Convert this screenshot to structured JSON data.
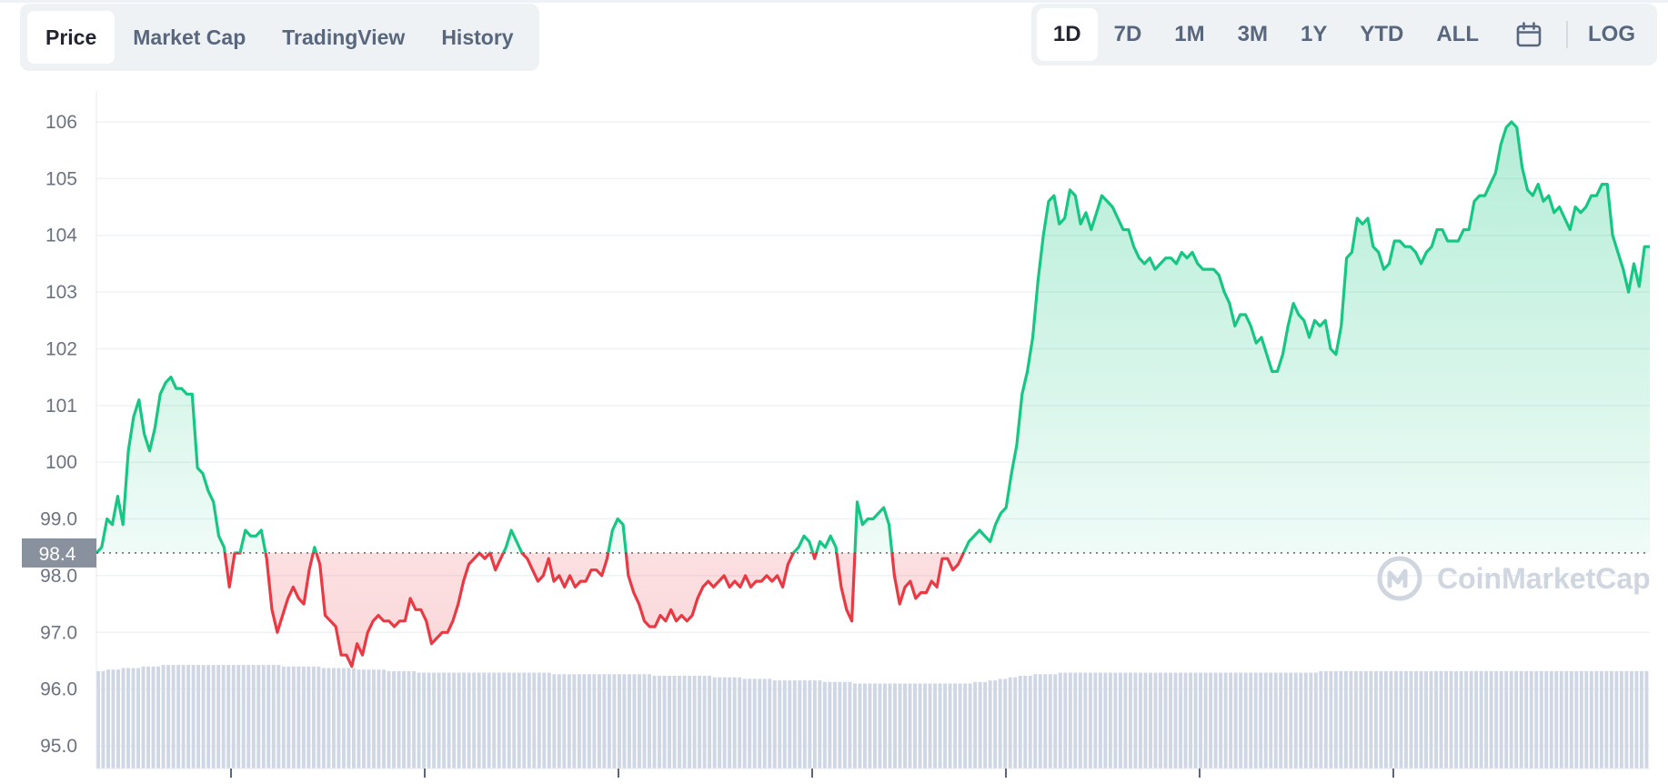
{
  "tabs": [
    {
      "label": "Price",
      "active": true
    },
    {
      "label": "Market Cap",
      "active": false
    },
    {
      "label": "TradingView",
      "active": false
    },
    {
      "label": "History",
      "active": false
    }
  ],
  "ranges": [
    {
      "label": "1D",
      "active": true
    },
    {
      "label": "7D",
      "active": false
    },
    {
      "label": "1M",
      "active": false
    },
    {
      "label": "3M",
      "active": false
    },
    {
      "label": "1Y",
      "active": false
    },
    {
      "label": "YTD",
      "active": false
    },
    {
      "label": "ALL",
      "active": false
    }
  ],
  "calendar_icon": "calendar-icon",
  "log_label": "LOG",
  "watermark": {
    "text": "CoinMarketCap",
    "icon": "coinmarketcap-logo-icon"
  },
  "colors": {
    "up": "#16c784",
    "down": "#ea3943",
    "grid": "#eff2f5",
    "volume": "#cfd6e4",
    "badge": "#8a919e"
  },
  "chart_data": {
    "type": "line",
    "ylim": [
      94.5,
      106.6
    ],
    "yticks": [
      "106",
      "105",
      "104",
      "103",
      "102",
      "101",
      "100",
      "99.0",
      "98.0",
      "97.0",
      "96.0",
      "95.0"
    ],
    "ytick_values": [
      106,
      105,
      104,
      103,
      102,
      101,
      100,
      99,
      98,
      97,
      96,
      95
    ],
    "reference_value": 98.4,
    "reference_label": "98.4",
    "grid": true,
    "series": [
      {
        "values": [
          98.4,
          98.5,
          99.0,
          98.9,
          99.4,
          98.9,
          100.2,
          100.8,
          101.1,
          100.5,
          100.2,
          100.6,
          101.2,
          101.4,
          101.5,
          101.3,
          101.3,
          101.2,
          101.2,
          99.9,
          99.8,
          99.5,
          99.3,
          98.7,
          98.5,
          97.8,
          98.4,
          98.4,
          98.8,
          98.7,
          98.7,
          98.8,
          98.3,
          97.4,
          97.0,
          97.3,
          97.6,
          97.8,
          97.6,
          97.5,
          98.1,
          98.5,
          98.2,
          97.3,
          97.2,
          97.1,
          96.6,
          96.6,
          96.4,
          96.8,
          96.6,
          97.0,
          97.2,
          97.3,
          97.2,
          97.2,
          97.1,
          97.2,
          97.2,
          97.6,
          97.4,
          97.4,
          97.2,
          96.8,
          96.9,
          97.0,
          97.0,
          97.2,
          97.5,
          97.9,
          98.2,
          98.3,
          98.4,
          98.3,
          98.4,
          98.1,
          98.3,
          98.5,
          98.8,
          98.6,
          98.4,
          98.3,
          98.1,
          97.9,
          98.0,
          98.3,
          97.9,
          98.0,
          97.8,
          98.0,
          97.8,
          97.9,
          97.9,
          98.1,
          98.1,
          98.0,
          98.3,
          98.8,
          99.0,
          98.9,
          98.0,
          97.7,
          97.5,
          97.2,
          97.1,
          97.1,
          97.3,
          97.2,
          97.4,
          97.2,
          97.3,
          97.2,
          97.3,
          97.6,
          97.8,
          97.9,
          97.8,
          97.9,
          98.0,
          97.8,
          97.9,
          97.8,
          98.0,
          97.8,
          97.9,
          97.9,
          98.0,
          97.9,
          98.0,
          97.8,
          98.2,
          98.4,
          98.5,
          98.7,
          98.6,
          98.3,
          98.6,
          98.5,
          98.7,
          98.5,
          97.8,
          97.4,
          97.2,
          99.3,
          98.9,
          99.0,
          99.0,
          99.1,
          99.2,
          98.9,
          98.0,
          97.5,
          97.8,
          97.9,
          97.6,
          97.7,
          97.7,
          97.9,
          97.8,
          98.3,
          98.3,
          98.1,
          98.2,
          98.4,
          98.6,
          98.7,
          98.8,
          98.7,
          98.6,
          98.9,
          99.1,
          99.2,
          99.8,
          100.3,
          101.2,
          101.6,
          102.2,
          103.2,
          104.0,
          104.6,
          104.7,
          104.2,
          104.3,
          104.8,
          104.7,
          104.2,
          104.4,
          104.1,
          104.4,
          104.7,
          104.6,
          104.5,
          104.3,
          104.1,
          104.1,
          103.8,
          103.6,
          103.5,
          103.6,
          103.4,
          103.5,
          103.6,
          103.6,
          103.5,
          103.7,
          103.6,
          103.7,
          103.5,
          103.4,
          103.4,
          103.4,
          103.3,
          103.0,
          102.8,
          102.4,
          102.6,
          102.6,
          102.4,
          102.1,
          102.2,
          101.9,
          101.6,
          101.6,
          101.9,
          102.4,
          102.8,
          102.6,
          102.5,
          102.2,
          102.5,
          102.4,
          102.5,
          102.0,
          101.9,
          102.4,
          103.6,
          103.7,
          104.3,
          104.2,
          104.3,
          103.8,
          103.7,
          103.4,
          103.5,
          103.9,
          103.9,
          103.8,
          103.8,
          103.7,
          103.5,
          103.7,
          103.8,
          104.1,
          104.1,
          103.9,
          103.9,
          103.9,
          104.1,
          104.1,
          104.6,
          104.7,
          104.7,
          104.9,
          105.1,
          105.6,
          105.9,
          106.0,
          105.9,
          105.2,
          104.8,
          104.7,
          104.9,
          104.6,
          104.7,
          104.4,
          104.5,
          104.3,
          104.1,
          104.5,
          104.4,
          104.5,
          104.7,
          104.7,
          104.9,
          104.9,
          104.0,
          103.7,
          103.4,
          103.0,
          103.5,
          103.1,
          103.8,
          103.8
        ]
      }
    ],
    "volume": [
      63,
      63,
      64,
      64,
      64,
      65,
      65,
      65,
      65,
      66,
      66,
      66,
      66,
      67,
      67,
      67,
      67,
      67,
      67,
      67,
      67,
      67,
      67,
      67,
      67,
      67,
      67,
      67,
      67,
      67,
      67,
      67,
      67,
      67,
      67,
      67,
      67,
      66,
      66,
      66,
      66,
      66,
      66,
      66,
      66,
      65,
      65,
      65,
      65,
      65,
      65,
      65,
      64,
      64,
      64,
      64,
      64,
      64,
      63,
      63,
      63,
      63,
      63,
      63,
      62,
      62,
      62,
      62,
      62,
      62,
      62,
      62,
      62,
      62,
      62,
      62,
      62,
      62,
      62,
      62,
      62,
      62,
      62,
      62,
      62,
      62,
      62,
      62,
      62,
      62,
      62,
      61,
      61,
      61,
      61,
      61,
      61,
      61,
      61,
      61,
      61,
      61,
      61,
      61,
      61,
      61,
      61,
      61,
      61,
      61,
      61,
      60,
      60,
      60,
      60,
      60,
      60,
      60,
      60,
      60,
      60,
      60,
      60,
      59,
      59,
      59,
      59,
      59,
      59,
      58,
      58,
      58,
      58,
      58,
      58,
      57,
      57,
      57,
      57,
      57,
      57,
      57,
      57,
      57,
      57,
      56,
      56,
      56,
      56,
      56,
      56,
      55,
      55,
      55,
      55,
      55,
      55,
      55,
      55,
      55,
      55,
      55,
      55,
      55,
      55,
      55,
      55,
      55,
      55,
      55,
      55,
      55,
      55,
      55,
      55,
      56,
      56,
      56,
      57,
      57,
      58,
      58,
      59,
      59,
      60,
      60,
      60,
      61,
      61,
      61,
      61,
      61,
      62,
      62,
      62,
      62,
      62,
      62,
      62,
      62,
      62,
      62,
      62,
      62,
      62,
      62,
      62,
      62,
      62,
      62,
      62,
      62,
      62,
      62,
      62,
      62,
      62,
      62,
      62,
      62,
      62,
      62,
      62,
      62,
      62,
      62,
      62,
      62,
      62,
      62,
      62,
      62,
      62,
      62,
      62,
      62,
      62,
      62,
      62,
      62,
      62,
      62,
      62,
      62,
      63,
      63,
      63,
      63,
      63,
      63,
      63,
      63,
      63,
      63,
      63,
      63,
      63,
      63,
      63,
      63,
      63,
      63,
      63,
      63,
      63,
      63,
      63,
      63,
      63,
      63,
      63,
      63,
      63,
      63,
      63,
      63,
      63,
      63,
      63,
      63,
      63,
      63,
      63,
      63,
      63,
      63,
      63,
      63,
      63,
      63,
      63,
      63,
      63,
      63,
      63,
      63,
      63,
      63,
      63,
      63,
      63,
      63,
      63,
      63,
      63,
      63,
      63,
      63,
      63,
      63
    ]
  }
}
